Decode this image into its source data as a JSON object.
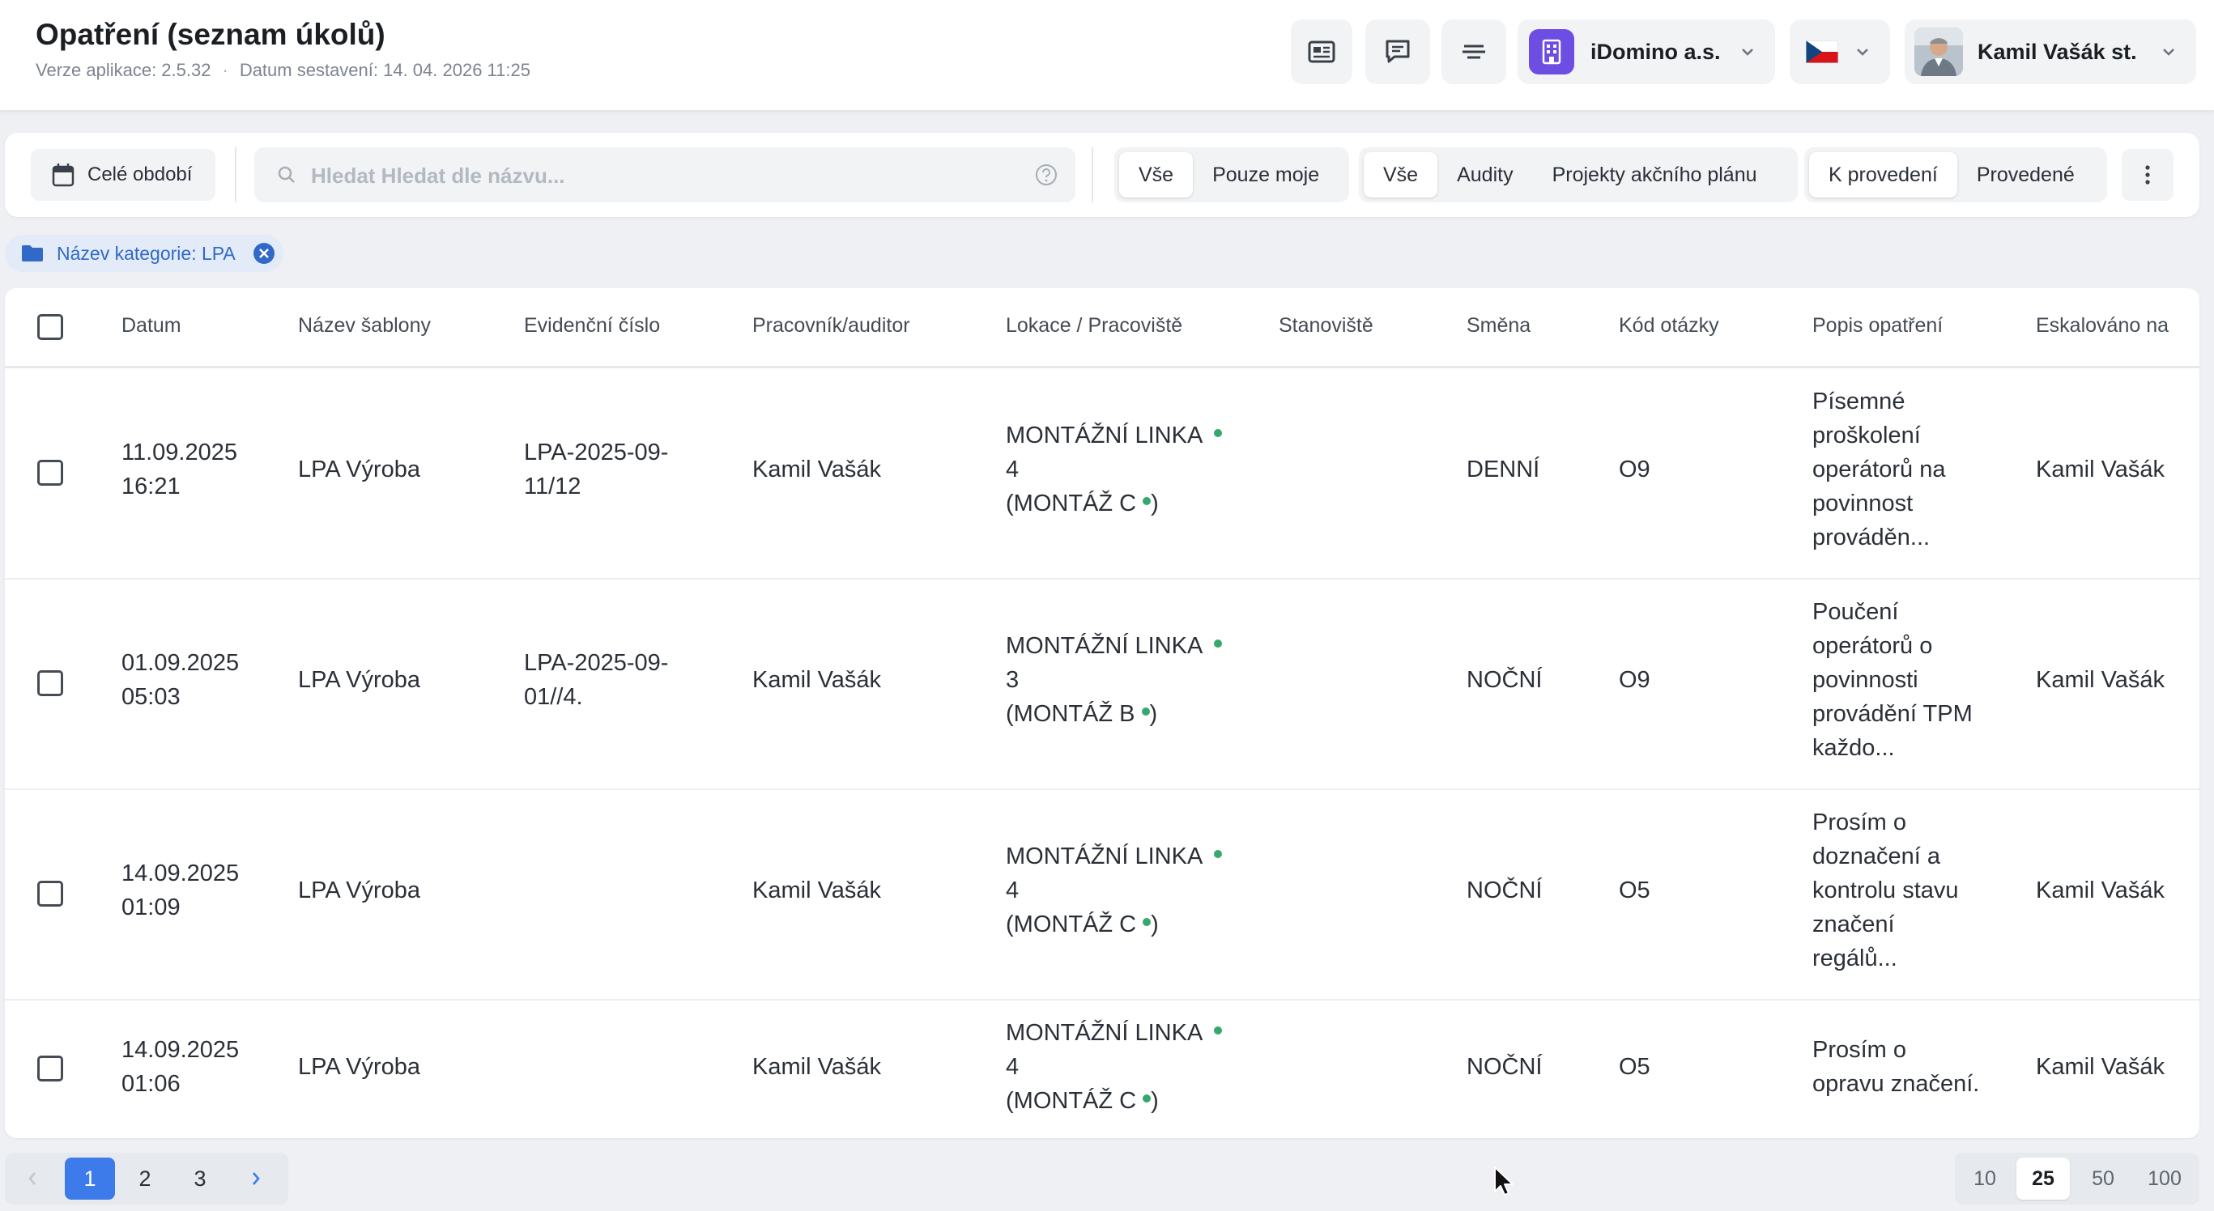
{
  "header": {
    "title": "Opatření (seznam úkolů)",
    "version_text": "Verze aplikace: 2.5.32",
    "build_text": "Datum sestavení: 14. 04. 2026 11:25",
    "organization": "iDomino a.s.",
    "language_flag": "czech-flag-icon",
    "user_name": "Kamil Vašák st."
  },
  "toolbar": {
    "period_label": "Celé období",
    "search_placeholder": "Hledat Hledat dle názvu...",
    "owner_filter": [
      {
        "label": "Vše",
        "active": true
      },
      {
        "label": "Pouze moje",
        "active": false
      }
    ],
    "type_filter": [
      {
        "label": "Vše",
        "active": true
      },
      {
        "label": "Audity",
        "active": false
      },
      {
        "label": "Projekty akčního plánu",
        "active": false
      }
    ],
    "state_filter": [
      {
        "label": "K provedení",
        "active": true
      },
      {
        "label": "Provedené",
        "active": false
      }
    ]
  },
  "active_filter_chip": "Název kategorie: LPA",
  "table": {
    "columns": [
      "Datum",
      "Název šablony",
      "Evidenční číslo",
      "Pracovník/auditor",
      "Lokace / Pracoviště",
      "Stanoviště",
      "Směna",
      "Kód otázky",
      "Popis opatření",
      "Eskalováno na"
    ],
    "rows": [
      {
        "date": "11.09.2025",
        "time": "16:21",
        "template": "LPA Výroba",
        "record_1": "LPA-2025-09-",
        "record_2": "11/12",
        "worker": "Kamil Vašák",
        "loc_1": "MONTÁŽNÍ LINKA",
        "loc_2": "4",
        "loc_3": "(MONTÁŽ C",
        "loc_close": ")",
        "station": "",
        "shift": "DENNÍ",
        "question_code": "O9",
        "description": [
          "Písemné",
          "proškolení",
          "operátorů na",
          "povinnost",
          "prováděn..."
        ],
        "escalated_to": "Kamil Vašák"
      },
      {
        "date": "01.09.2025",
        "time": "05:03",
        "template": "LPA Výroba",
        "record_1": "LPA-2025-09-",
        "record_2": "01//4.",
        "worker": "Kamil Vašák",
        "loc_1": "MONTÁŽNÍ LINKA",
        "loc_2": "3",
        "loc_3": "(MONTÁŽ B",
        "loc_close": ")",
        "station": "",
        "shift": "NOČNÍ",
        "question_code": "O9",
        "description": [
          "Poučení",
          "operátorů o",
          "povinnosti",
          "provádění TPM",
          "každo..."
        ],
        "escalated_to": "Kamil Vašák"
      },
      {
        "date": "14.09.2025",
        "time": "01:09",
        "template": "LPA Výroba",
        "record_1": "",
        "record_2": "",
        "worker": "Kamil Vašák",
        "loc_1": "MONTÁŽNÍ LINKA",
        "loc_2": "4",
        "loc_3": "(MONTÁŽ C",
        "loc_close": ")",
        "station": "",
        "shift": "NOČNÍ",
        "question_code": "O5",
        "description": [
          "Prosím o",
          "doznačení a",
          "kontrolu stavu",
          "značení",
          "regálů..."
        ],
        "escalated_to": "Kamil Vašák"
      },
      {
        "date": "14.09.2025",
        "time": "01:06",
        "template": "LPA Výroba",
        "record_1": "",
        "record_2": "",
        "worker": "Kamil Vašák",
        "loc_1": "MONTÁŽNÍ LINKA",
        "loc_2": "4",
        "loc_3": "(MONTÁŽ C",
        "loc_close": ")",
        "station": "",
        "shift": "NOČNÍ",
        "question_code": "O5",
        "description": [
          "Prosím o",
          "opravu značení."
        ],
        "escalated_to": "Kamil Vašák"
      }
    ]
  },
  "pagination": {
    "pages": [
      "1",
      "2",
      "3"
    ],
    "current_page": "1",
    "page_sizes": [
      "10",
      "25",
      "50",
      "100"
    ],
    "current_size": "25"
  },
  "colors": {
    "accent": "#3d7bea",
    "org_logo": "#6d4ee3",
    "status_dot": "#35a86b",
    "chip_bg": "#e3ebf8"
  }
}
